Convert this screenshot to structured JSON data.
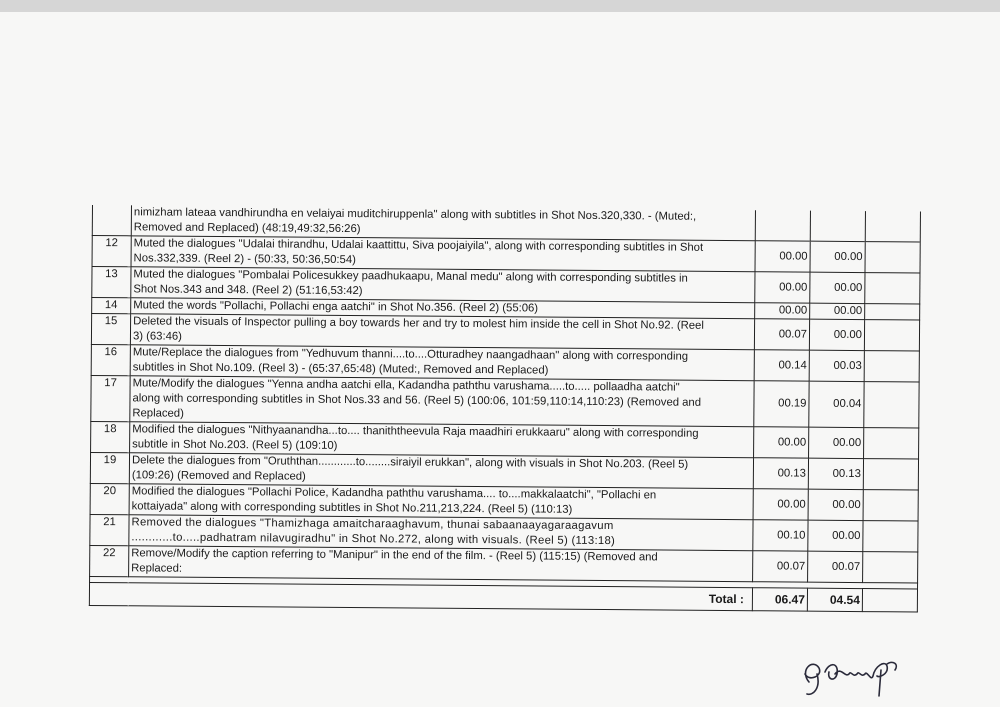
{
  "table": {
    "rows": [
      {
        "no": "",
        "desc": [
          "nimizham lateaa vandhirundha en velaiyai muditchiruppenla\" along with subtitles in Shot Nos.320,330. - (Muted:,",
          "Removed and Replaced) (48:19,49:32,56:26)"
        ],
        "v1": "",
        "v2": ""
      },
      {
        "no": "12",
        "desc": [
          "Muted the dialogues \"Udalai thirandhu, Udalai kaattittu, Siva poojaiyila\", along with corresponding subtitles in Shot",
          "Nos.332,339.  (Reel 2) - (50:33, 50:36,50:54)"
        ],
        "v1": "00.00",
        "v2": "00.00"
      },
      {
        "no": "13",
        "desc": [
          "Muted the dialogues \"Pombalai Policesukkey paadhukaapu, Manal medu\" along with corresponding subtitles in",
          "Shot Nos.343 and 348. (Reel 2) (51:16,53:42)"
        ],
        "v1": "00.00",
        "v2": "00.00"
      },
      {
        "no": "14",
        "desc": [
          "Muted the words \"Pollachi, Pollachi enga aatchi\" in Shot No.356. (Reel 2) (55:06)"
        ],
        "v1": "00.00",
        "v2": "00.00"
      },
      {
        "no": "15",
        "desc": [
          "Deleted the visuals of Inspector pulling a boy towards her and try to molest him inside the cell in Shot No.92. (Reel",
          "3) (63:46)"
        ],
        "v1": "00.07",
        "v2": "00.00"
      },
      {
        "no": "16",
        "desc": [
          "Mute/Replace the dialogues from \"Yedhuvum thanni....to....Otturadhey naangadhaan\" along with corresponding",
          "subtitles in Shot No.109. (Reel 3) - (65:37,65:48) (Muted:, Removed and Replaced)"
        ],
        "v1": "00.14",
        "v2": "00.03"
      },
      {
        "no": "17",
        "desc": [
          "Mute/Modify the dialogues \"Yenna andha aatchi ella, Kadandha paththu varushama.....to..... pollaadha aatchi\"",
          "along with corresponding subtitles in Shot Nos.33 and 56. (Reel 5) (100:06, 101:59,110:14,110:23) (Removed and",
          "Replaced)"
        ],
        "v1": "00.19",
        "v2": "00.04"
      },
      {
        "no": "18",
        "desc": [
          "Modified the dialogues \"Nithyaanandha...to.... thaniththeevula Raja maadhiri erukkaaru\" along with corresponding",
          "subtitle in Shot No.203. (Reel 5) (109:10)"
        ],
        "v1": "00.00",
        "v2": "00.00"
      },
      {
        "no": "19",
        "desc": [
          "Delete the dialogues from \"Oruththan............to........siraiyil erukkan\", along with visuals in Shot No.203. (Reel 5)",
          "(109:26) (Removed and Replaced)"
        ],
        "v1": "00.13",
        "v2": "00.13"
      },
      {
        "no": "20",
        "desc": [
          "Modified the dialogues \"Pollachi Police, Kadandha paththu varushama.... to....makkalaatchi\", \"Pollachi en",
          "kottaiyada\" along with corresponding subtitles in Shot No.211,213,224. (Reel 5) (110:13)"
        ],
        "v1": "00.00",
        "v2": "00.00"
      },
      {
        "no": "21",
        "desc": [
          "Removed the dialogues \"Thamizhaga amaitcharaaghavum, thunai sabaanaayagaraagavum",
          "............to.....padhatram nilavugiradhu\" in Shot No.272, along with visuals. (Reel 5) (113:18)"
        ],
        "v1": "00.10",
        "v2": "00.00"
      },
      {
        "no": "22",
        "desc": [
          "Remove/Modify the caption  referring to \"Manipur\" in the end of the film. - (Reel 5) (115:15) (Removed and",
          "Replaced:"
        ],
        "v1": "00.07",
        "v2": "00.07"
      }
    ],
    "total_label": "Total :",
    "total_v1": "06.47",
    "total_v2": "04.54"
  },
  "signature": {
    "text": "signature",
    "ink_color": "#2a2a3a"
  }
}
